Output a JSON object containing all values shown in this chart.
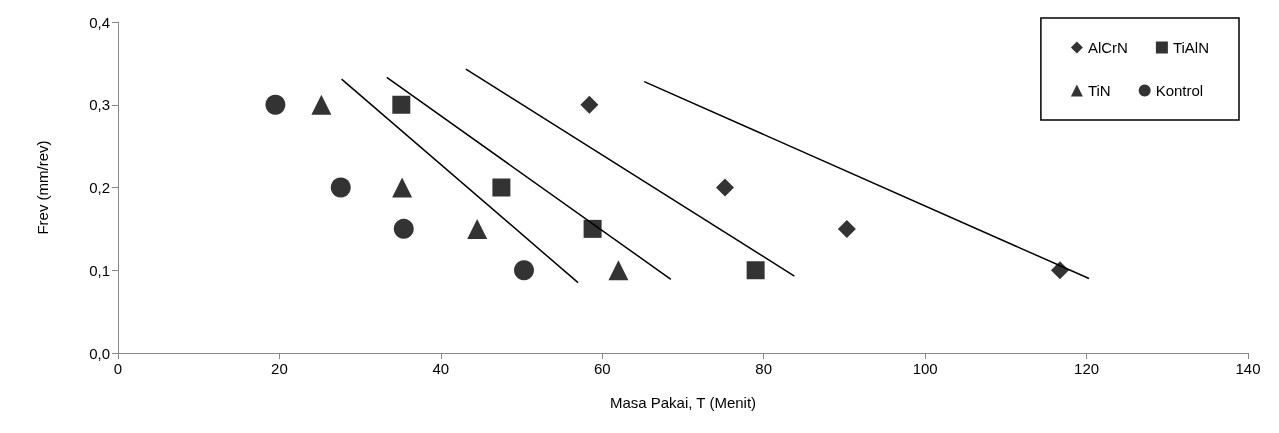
{
  "chart_data": {
    "type": "scatter",
    "xlabel": "Masa Pakai, T (Menit)",
    "ylabel": "Frev (mm/rev)",
    "xlim": [
      0,
      140
    ],
    "xticks": [
      0,
      20,
      40,
      60,
      80,
      100,
      120,
      140
    ],
    "ylim": [
      0,
      0.4
    ],
    "yticks": [
      {
        "value": 0,
        "label": "0,0"
      },
      {
        "value": 0.1,
        "label": "0,1"
      },
      {
        "value": 0.2,
        "label": "0,2"
      },
      {
        "value": 0.3,
        "label": "0,3"
      },
      {
        "value": 0.4,
        "label": "0,4"
      }
    ],
    "grid": false,
    "legend": "top right",
    "series": [
      {
        "name": "AlCrN",
        "color": "#000000",
        "marker": "diamond",
        "x": [
          58.4,
          75.2,
          90.3,
          116.7
        ],
        "values": [
          0.3,
          0.2,
          0.15,
          0.1
        ]
      },
      {
        "name": "TiAlN",
        "color": "#000000",
        "marker": "square",
        "x": [
          35.1,
          47.5,
          58.8,
          79.0
        ],
        "values": [
          0.3,
          0.2,
          0.15,
          0.1
        ]
      },
      {
        "name": "TiN",
        "color": "#000000",
        "marker": "triangle",
        "x": [
          25.2,
          35.2,
          44.5,
          62.0
        ],
        "values": [
          0.3,
          0.2,
          0.15,
          0.1
        ]
      },
      {
        "name": "Kontrol",
        "color": "#000000",
        "marker": "circle",
        "x": [
          19.5,
          27.6,
          35.4,
          50.3
        ],
        "values": [
          0.3,
          0.2,
          0.15,
          0.1
        ]
      },
      {
        "type": "line",
        "color": "#000000",
        "marker": "none",
        "x": [
          27.7,
          57.0
        ],
        "values": [
          0.331,
          0.085
        ]
      },
      {
        "type": "line",
        "color": "#000000",
        "marker": "none",
        "x": [
          33.3,
          68.5
        ],
        "values": [
          0.333,
          0.089
        ]
      },
      {
        "type": "line",
        "color": "#000000",
        "marker": "none",
        "x": [
          43.1,
          83.8
        ],
        "values": [
          0.343,
          0.093
        ]
      },
      {
        "type": "line",
        "color": "#000000",
        "marker": "none",
        "x": [
          65.2,
          120.3
        ],
        "values": [
          0.328,
          0.09
        ]
      }
    ]
  }
}
